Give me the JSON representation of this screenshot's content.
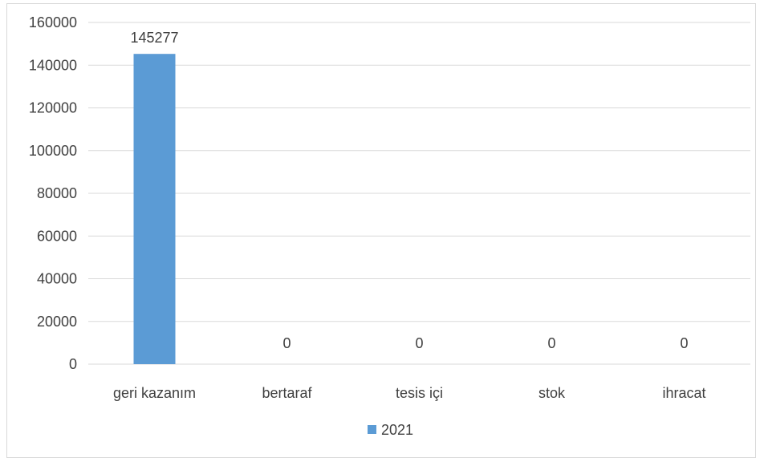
{
  "chart_data": {
    "type": "bar",
    "categories": [
      "geri kazanım",
      "bertaraf",
      "tesis içi",
      "stok",
      "ihracat"
    ],
    "series": [
      {
        "name": "2021",
        "values": [
          145277,
          0,
          0,
          0,
          0
        ],
        "color": "#5b9bd5"
      }
    ],
    "data_labels": [
      "145277",
      "0",
      "0",
      "0",
      "0"
    ],
    "title": "",
    "xlabel": "",
    "ylabel": "",
    "ylim": [
      0,
      160000
    ],
    "yticks": [
      0,
      20000,
      40000,
      60000,
      80000,
      100000,
      120000,
      140000,
      160000
    ],
    "ytick_labels": [
      "0",
      "20000",
      "40000",
      "60000",
      "80000",
      "100000",
      "120000",
      "140000",
      "160000"
    ],
    "grid": true,
    "gridline_color": "#d9d9d9",
    "legend": {
      "position": "bottom",
      "label": "2021"
    }
  }
}
